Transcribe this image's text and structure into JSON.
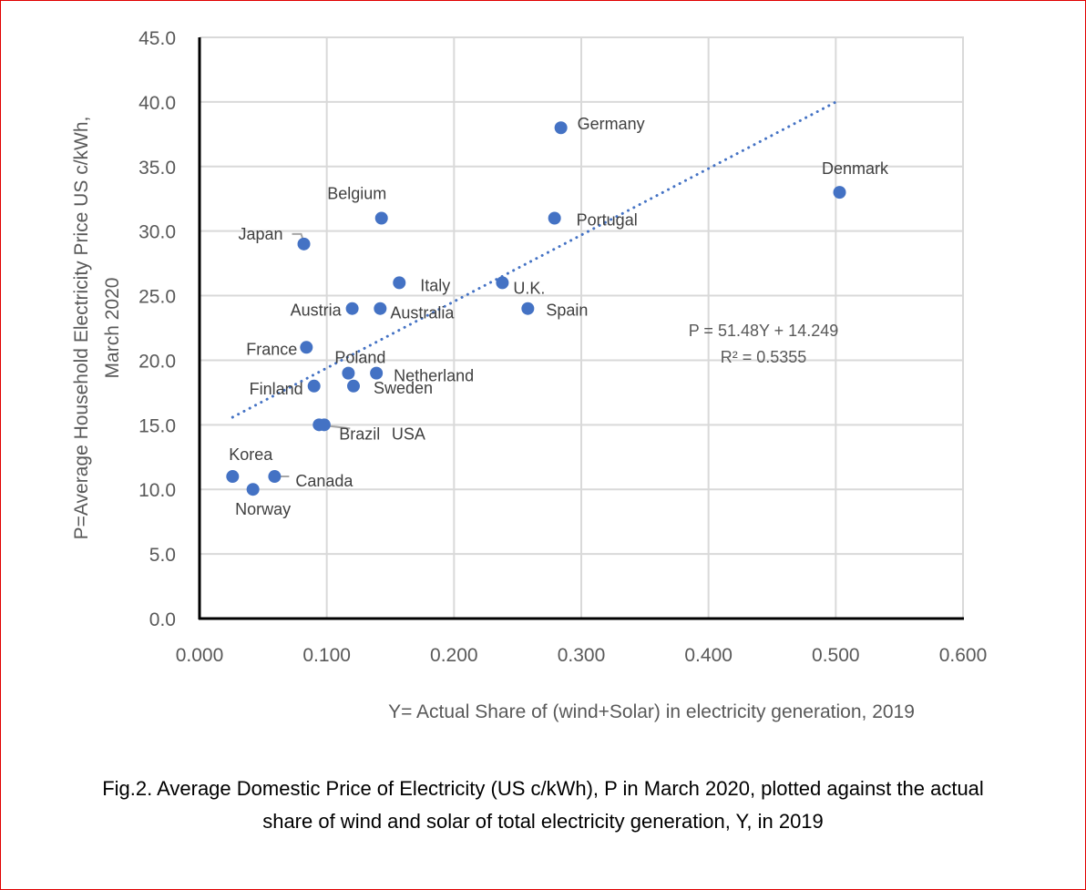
{
  "chart_data": {
    "type": "scatter",
    "title": "",
    "xlabel": "Y= Actual Share of (wind+Solar) in electricity generation, 2019",
    "ylabel_lines": [
      "P=Average Household Electricity Price US c/kWh,",
      "March 2020"
    ],
    "xlim": [
      0,
      0.6
    ],
    "ylim": [
      0,
      45
    ],
    "xticks": [
      "0.000",
      "0.100",
      "0.200",
      "0.300",
      "0.400",
      "0.500",
      "0.600"
    ],
    "yticks": [
      "0.0",
      "5.0",
      "10.0",
      "15.0",
      "20.0",
      "25.0",
      "30.0",
      "35.0",
      "40.0",
      "45.0"
    ],
    "grid": true,
    "marker_color": "#4472C4",
    "points": [
      {
        "label": "Germany",
        "x": 0.284,
        "y": 38.0
      },
      {
        "label": "Denmark",
        "x": 0.503,
        "y": 33.0
      },
      {
        "label": "Belgium",
        "x": 0.143,
        "y": 31.0
      },
      {
        "label": "Portugal",
        "x": 0.279,
        "y": 31.0
      },
      {
        "label": "Japan",
        "x": 0.082,
        "y": 29.0
      },
      {
        "label": "Italy",
        "x": 0.157,
        "y": 26.0
      },
      {
        "label": "U.K.",
        "x": 0.238,
        "y": 26.0
      },
      {
        "label": "Austria",
        "x": 0.12,
        "y": 24.0
      },
      {
        "label": "Australia",
        "x": 0.142,
        "y": 24.0
      },
      {
        "label": "Spain",
        "x": 0.258,
        "y": 24.0
      },
      {
        "label": "France",
        "x": 0.084,
        "y": 21.0
      },
      {
        "label": "Poland",
        "x": 0.117,
        "y": 19.0
      },
      {
        "label": "Netherland",
        "x": 0.139,
        "y": 19.0
      },
      {
        "label": "Finland",
        "x": 0.09,
        "y": 18.0
      },
      {
        "label": "Sweden",
        "x": 0.121,
        "y": 18.0
      },
      {
        "label": "Brazil",
        "x": 0.094,
        "y": 15.0
      },
      {
        "label": "USA",
        "x": 0.098,
        "y": 15.0
      },
      {
        "label": "Korea",
        "x": 0.026,
        "y": 11.0
      },
      {
        "label": "Canada",
        "x": 0.059,
        "y": 11.0
      },
      {
        "label": "Norway",
        "x": 0.042,
        "y": 10.0
      }
    ],
    "trendline": {
      "type": "linear",
      "style": "dotted",
      "slope": 51.48,
      "intercept": 14.249,
      "x_range": [
        0.026,
        0.503
      ],
      "equation": "P = 51.48Y + 14.249",
      "r_squared": "R² = 0.5355"
    }
  },
  "caption": {
    "line1": "Fig.2. Average Domestic Price of Electricity (US c/kWh), P in March 2020, plotted against the actual",
    "line2": "share of wind and solar of total electricity generation, Y, in 2019"
  }
}
